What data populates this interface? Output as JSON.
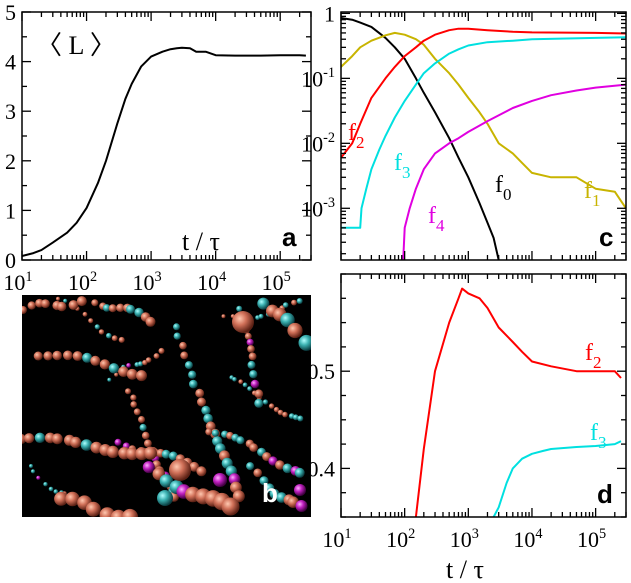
{
  "colors": {
    "f0": "#000000",
    "f1": "#c8b400",
    "f2": "#ff0000",
    "f3": "#00e0e0",
    "f4": "#e000e0"
  },
  "chart_data": [
    {
      "id": "a",
      "type": "line",
      "panel_label": "a",
      "ylabel": "〈 L 〉",
      "xlabel": "t / τ",
      "xscale": "log",
      "xlim": [
        10,
        300000
      ],
      "ylim": [
        0,
        5
      ],
      "xticks": [
        10,
        100,
        1000,
        10000,
        100000
      ],
      "xtick_labels": [
        [
          "10",
          "1"
        ],
        [
          "10",
          "2"
        ],
        [
          "10",
          "3"
        ],
        [
          "10",
          "4"
        ],
        [
          "10",
          "5"
        ]
      ],
      "yticks": [
        0,
        1,
        2,
        3,
        4,
        5
      ],
      "ytick_labels": [
        "0",
        "1",
        "2",
        "3",
        "4",
        "5"
      ],
      "series": [
        {
          "color": "#000000",
          "x": [
            10,
            15,
            20,
            30,
            50,
            70,
            100,
            150,
            200,
            300,
            400,
            500,
            700,
            1000,
            1500,
            2000,
            2500,
            3000,
            4000,
            5000,
            7000,
            10000,
            20000,
            50000,
            100000,
            200000,
            250000
          ],
          "y": [
            0.08,
            0.14,
            0.2,
            0.35,
            0.55,
            0.75,
            1.05,
            1.55,
            2.0,
            2.75,
            3.25,
            3.55,
            3.9,
            4.1,
            4.2,
            4.25,
            4.27,
            4.28,
            4.27,
            4.2,
            4.2,
            4.13,
            4.12,
            4.12,
            4.13,
            4.13,
            4.12
          ]
        }
      ]
    },
    {
      "id": "c",
      "type": "line",
      "panel_label": "c",
      "xscale": "log",
      "yscale": "log",
      "xlim": [
        10,
        300000
      ],
      "ylim": [
        0.00016,
        1.05
      ],
      "yticks": [
        0.001,
        0.01,
        0.1,
        1
      ],
      "ytick_labels": [
        [
          "10",
          "-3"
        ],
        [
          "10",
          "-2"
        ],
        [
          "10",
          "-1"
        ],
        [
          "1",
          ""
        ]
      ],
      "series": [
        {
          "name": "f0",
          "label": "f",
          "label_sub": "0",
          "color": "#000000",
          "x": [
            10,
            15,
            20,
            30,
            50,
            70,
            100,
            150,
            200,
            300,
            500,
            700,
            1000,
            1500,
            2000,
            2500,
            3000
          ],
          "y": [
            0.85,
            0.8,
            0.72,
            0.62,
            0.42,
            0.3,
            0.2,
            0.1,
            0.06,
            0.03,
            0.012,
            0.006,
            0.003,
            0.0012,
            0.0006,
            0.00035,
            0.00016
          ]
        },
        {
          "name": "f1",
          "label": "f",
          "label_sub": "1",
          "color": "#c8b400",
          "x": [
            10,
            15,
            20,
            30,
            50,
            70,
            100,
            150,
            200,
            300,
            500,
            700,
            1000,
            1500,
            2000,
            3000,
            5000,
            7000,
            10000,
            20000,
            50000,
            100000,
            200000,
            250000,
            300000
          ],
          "y": [
            0.15,
            0.22,
            0.3,
            0.38,
            0.46,
            0.5,
            0.47,
            0.4,
            0.33,
            0.2,
            0.12,
            0.08,
            0.05,
            0.03,
            0.02,
            0.01,
            0.007,
            0.005,
            0.0035,
            0.003,
            0.003,
            0.002,
            0.0018,
            0.0013,
            0.001
          ]
        },
        {
          "name": "f2",
          "label": "f",
          "label_sub": "2",
          "color": "#ff0000",
          "x": [
            10,
            15,
            20,
            30,
            50,
            70,
            100,
            150,
            200,
            300,
            500,
            700,
            1000,
            2000,
            5000,
            10000,
            100000,
            300000
          ],
          "y": [
            0.006,
            0.01,
            0.02,
            0.05,
            0.1,
            0.15,
            0.22,
            0.3,
            0.38,
            0.47,
            0.55,
            0.58,
            0.58,
            0.55,
            0.52,
            0.51,
            0.5,
            0.49
          ]
        },
        {
          "name": "f3",
          "label": "f",
          "label_sub": "3",
          "color": "#00e0e0",
          "x": [
            10,
            20,
            21,
            25,
            30,
            40,
            50,
            70,
            100,
            150,
            200,
            300,
            500,
            700,
            1000,
            2000,
            5000,
            10000,
            100000,
            300000
          ],
          "y": [
            0.0005,
            0.0005,
            0.001,
            0.002,
            0.004,
            0.008,
            0.013,
            0.025,
            0.045,
            0.08,
            0.12,
            0.17,
            0.24,
            0.28,
            0.32,
            0.36,
            0.38,
            0.4,
            0.42,
            0.43
          ]
        },
        {
          "name": "f4",
          "label": "f",
          "label_sub": "4",
          "color": "#e000e0",
          "x": [
            95,
            100,
            120,
            150,
            200,
            300,
            500,
            700,
            1000,
            2000,
            5000,
            10000,
            20000,
            50000,
            100000,
            300000
          ],
          "y": [
            0.00016,
            0.0005,
            0.001,
            0.002,
            0.004,
            0.007,
            0.01,
            0.012,
            0.015,
            0.022,
            0.035,
            0.045,
            0.055,
            0.065,
            0.072,
            0.08
          ]
        }
      ]
    },
    {
      "id": "d",
      "type": "line",
      "panel_label": "d",
      "xlabel": "t / τ",
      "xscale": "log",
      "xlim": [
        10,
        300000
      ],
      "ylim": [
        0.35,
        0.6
      ],
      "xticks": [
        10,
        100,
        1000,
        10000,
        100000
      ],
      "xtick_labels": [
        [
          "10",
          "1"
        ],
        [
          "10",
          "2"
        ],
        [
          "10",
          "3"
        ],
        [
          "10",
          "4"
        ],
        [
          "10",
          "5"
        ]
      ],
      "yticks": [
        0.4,
        0.5
      ],
      "ytick_labels": [
        "0.4",
        "0.5"
      ],
      "series": [
        {
          "name": "f2",
          "label": "f",
          "label_sub": "2",
          "color": "#ff0000",
          "x": [
            150,
            200,
            300,
            500,
            700,
            800,
            1000,
            1500,
            2000,
            3000,
            5000,
            7000,
            10000,
            20000,
            50000,
            100000,
            200000,
            250000
          ],
          "y": [
            0.35,
            0.42,
            0.5,
            0.55,
            0.575,
            0.585,
            0.58,
            0.575,
            0.565,
            0.545,
            0.53,
            0.52,
            0.51,
            0.505,
            0.5,
            0.5,
            0.5,
            0.493
          ]
        },
        {
          "name": "f3",
          "label": "f",
          "label_sub": "3",
          "color": "#00e0e0",
          "x": [
            2500,
            3000,
            4000,
            5000,
            7000,
            10000,
            15000,
            20000,
            50000,
            100000,
            200000,
            250000
          ],
          "y": [
            0.35,
            0.36,
            0.385,
            0.4,
            0.41,
            0.415,
            0.418,
            0.42,
            0.422,
            0.423,
            0.425,
            0.428
          ]
        }
      ]
    }
  ],
  "panel_b": {
    "panel_label": "b"
  }
}
